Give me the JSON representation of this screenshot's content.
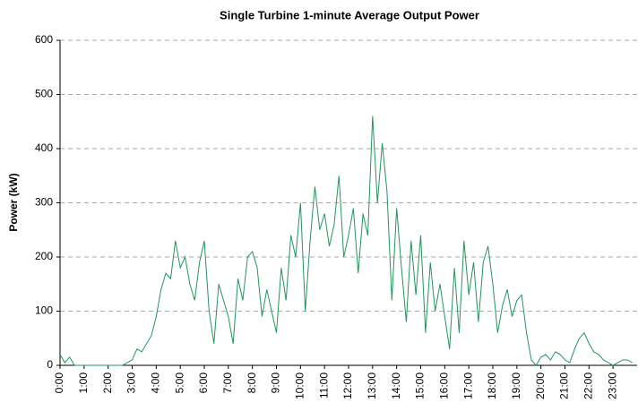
{
  "chart_data": {
    "type": "line",
    "title": "Single Turbine 1-minute Average Output Power",
    "y_label": "Power (kW)",
    "x": [
      0,
      0.2,
      0.4,
      0.6,
      0.8,
      1,
      1.2,
      1.4,
      1.6,
      1.8,
      2,
      2.2,
      2.4,
      2.6,
      2.8,
      3,
      3.2,
      3.4,
      3.6,
      3.8,
      4,
      4.2,
      4.4,
      4.6,
      4.8,
      5,
      5.2,
      5.4,
      5.6,
      5.8,
      6,
      6.2,
      6.4,
      6.6,
      6.8,
      7,
      7.2,
      7.4,
      7.6,
      7.8,
      8,
      8.2,
      8.4,
      8.6,
      8.8,
      9,
      9.2,
      9.4,
      9.6,
      9.8,
      10,
      10.2,
      10.4,
      10.6,
      10.8,
      11,
      11.2,
      11.4,
      11.6,
      11.8,
      12,
      12.2,
      12.4,
      12.6,
      12.8,
      13,
      13.2,
      13.4,
      13.6,
      13.8,
      14,
      14.2,
      14.4,
      14.6,
      14.8,
      15,
      15.2,
      15.4,
      15.6,
      15.8,
      16,
      16.2,
      16.4,
      16.6,
      16.8,
      17,
      17.2,
      17.4,
      17.6,
      17.8,
      18,
      18.2,
      18.4,
      18.6,
      18.8,
      19,
      19.2,
      19.4,
      19.6,
      19.8,
      20,
      20.2,
      20.4,
      20.6,
      20.8,
      21,
      21.2,
      21.4,
      21.6,
      21.8,
      22,
      22.2,
      22.4,
      22.6,
      22.8,
      23,
      23.2,
      23.4,
      23.6,
      23.8
    ],
    "series": [
      {
        "name": "Output Power",
        "color": "#21965a",
        "values": [
          20,
          5,
          15,
          0,
          0,
          0,
          0,
          0,
          0,
          0,
          0,
          0,
          0,
          0,
          5,
          10,
          30,
          25,
          40,
          55,
          90,
          140,
          170,
          160,
          230,
          180,
          200,
          150,
          120,
          190,
          230,
          100,
          40,
          150,
          120,
          90,
          40,
          160,
          120,
          200,
          210,
          180,
          90,
          140,
          100,
          60,
          180,
          120,
          240,
          200,
          300,
          100,
          230,
          330,
          250,
          280,
          220,
          260,
          350,
          200,
          240,
          290,
          170,
          280,
          240,
          460,
          300,
          410,
          320,
          120,
          290,
          180,
          80,
          230,
          130,
          240,
          60,
          190,
          100,
          150,
          90,
          30,
          180,
          60,
          230,
          130,
          190,
          80,
          190,
          220,
          150,
          60,
          110,
          140,
          90,
          120,
          130,
          60,
          10,
          0,
          15,
          20,
          10,
          25,
          20,
          10,
          5,
          30,
          50,
          60,
          40,
          25,
          20,
          10,
          5,
          0,
          5,
          10,
          10,
          5
        ]
      }
    ],
    "xlim": [
      0,
      24
    ],
    "ylim": [
      0,
      600
    ],
    "yticks": [
      0,
      100,
      200,
      300,
      400,
      500,
      600
    ],
    "xticks": [
      {
        "value": 0,
        "label": "0:00"
      },
      {
        "value": 1,
        "label": "1:00"
      },
      {
        "value": 2,
        "label": "2:00"
      },
      {
        "value": 3,
        "label": "3:00"
      },
      {
        "value": 4,
        "label": "4:00"
      },
      {
        "value": 5,
        "label": "5:00"
      },
      {
        "value": 6,
        "label": "6:00"
      },
      {
        "value": 7,
        "label": "7:00"
      },
      {
        "value": 8,
        "label": "8:00"
      },
      {
        "value": 9,
        "label": "9:00"
      },
      {
        "value": 10,
        "label": "10:00"
      },
      {
        "value": 11,
        "label": "11:00"
      },
      {
        "value": 12,
        "label": "12:00"
      },
      {
        "value": 13,
        "label": "13:00"
      },
      {
        "value": 14,
        "label": "14:00"
      },
      {
        "value": 15,
        "label": "15:00"
      },
      {
        "value": 16,
        "label": "16:00"
      },
      {
        "value": 17,
        "label": "17:00"
      },
      {
        "value": 18,
        "label": "18:00"
      },
      {
        "value": 19,
        "label": "19:00"
      },
      {
        "value": 20,
        "label": "20:00"
      },
      {
        "value": 21,
        "label": "21:00"
      },
      {
        "value": 22,
        "label": "22:00"
      },
      {
        "value": 23,
        "label": "23:00"
      }
    ],
    "grid": true
  }
}
